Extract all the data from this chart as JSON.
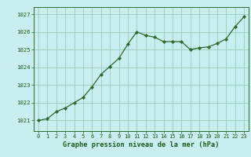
{
  "x": [
    0,
    1,
    2,
    3,
    4,
    5,
    6,
    7,
    8,
    9,
    10,
    11,
    12,
    13,
    14,
    15,
    16,
    17,
    18,
    19,
    20,
    21,
    22,
    23
  ],
  "y": [
    1021.0,
    1021.1,
    1021.5,
    1021.7,
    1022.0,
    1022.3,
    1022.9,
    1023.6,
    1024.05,
    1024.5,
    1025.3,
    1026.0,
    1025.8,
    1025.7,
    1025.45,
    1025.45,
    1025.45,
    1025.0,
    1025.1,
    1025.15,
    1025.35,
    1025.6,
    1026.3,
    1026.85
  ],
  "line_color": "#2d6a2d",
  "marker_color": "#2d6a2d",
  "bg_color": "#c8eef0",
  "grid_color": "#99ccbb",
  "xlabel": "Graphe pression niveau de la mer (hPa)",
  "xlabel_color": "#1a5c1a",
  "ylabel_ticks": [
    1021,
    1022,
    1023,
    1024,
    1025,
    1026,
    1027
  ],
  "xlim": [
    -0.5,
    23.5
  ],
  "ylim": [
    1020.4,
    1027.4
  ],
  "tick_color": "#1a5c1a",
  "spine_color": "#2d6a2d"
}
